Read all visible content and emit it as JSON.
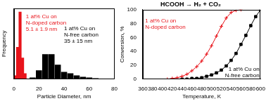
{
  "chart_data": [
    {
      "type": "bar",
      "xlabel": "Particle Diameter, nm",
      "ylabel": "Frequency",
      "xlim": [
        0,
        80
      ],
      "xticks": [
        0,
        20,
        40,
        60,
        80
      ],
      "ylim": [
        0,
        1
      ],
      "tick_labels": "x",
      "grid": false,
      "series": [
        {
          "color": "#e8141b",
          "x": [
            1,
            3,
            5,
            7,
            9
          ],
          "values": [
            0.05,
            0.45,
            0.95,
            0.3,
            0.08
          ]
        },
        {
          "color": "#000000",
          "x": [
            15,
            20,
            25,
            30,
            35,
            40,
            45,
            50,
            55,
            60,
            65
          ],
          "values": [
            0.02,
            0.12,
            0.35,
            0.35,
            0.2,
            0.1,
            0.08,
            0.05,
            0.03,
            0.02,
            0.01
          ]
        }
      ],
      "annotations": [
        {
          "text": [
            "1 at% Cu on",
            "N-doped carbon",
            "5.1 ± 1.9 nm"
          ],
          "color": "#e8141b"
        },
        {
          "text": [
            "1 at% Cu on",
            "N-free carbon",
            "35 ± 15 nm"
          ],
          "color": "#000000"
        }
      ]
    },
    {
      "type": "line",
      "title": "HCOOH → H₂ + CO₂",
      "xlabel": "Temperature, K",
      "ylabel": "Conversion, %",
      "xlim": [
        360,
        600
      ],
      "xticks": [
        360,
        380,
        400,
        420,
        440,
        460,
        480,
        500,
        520,
        540,
        560,
        580,
        600
      ],
      "ylim": [
        0,
        100
      ],
      "yticks": [
        0,
        20,
        40,
        60,
        80,
        100
      ],
      "grid": false,
      "series": [
        {
          "color": "#e8141b",
          "marker": "cross",
          "x": [
            410,
            420,
            430,
            440,
            450,
            460,
            470,
            480,
            490,
            500,
            510,
            520,
            530,
            540,
            550,
            560
          ],
          "values": [
            0,
            1,
            2,
            4,
            7,
            12,
            18,
            26,
            36,
            48,
            62,
            76,
            88,
            96,
            99,
            100
          ]
        },
        {
          "color": "#000000",
          "marker": "square",
          "x": [
            440,
            450,
            460,
            470,
            480,
            490,
            500,
            510,
            520,
            530,
            540,
            550,
            560,
            570,
            580,
            590,
            600
          ],
          "values": [
            0,
            0,
            1,
            1,
            2,
            4,
            6,
            9,
            13,
            19,
            27,
            37,
            50,
            63,
            77,
            90,
            100
          ]
        }
      ],
      "annotations": [
        {
          "text": [
            "1 at% Cu on",
            "N-doped carbon"
          ],
          "color": "#e8141b"
        },
        {
          "text": [
            "1 at% Cu on",
            "N-free carbon"
          ],
          "color": "#000000"
        }
      ]
    }
  ]
}
